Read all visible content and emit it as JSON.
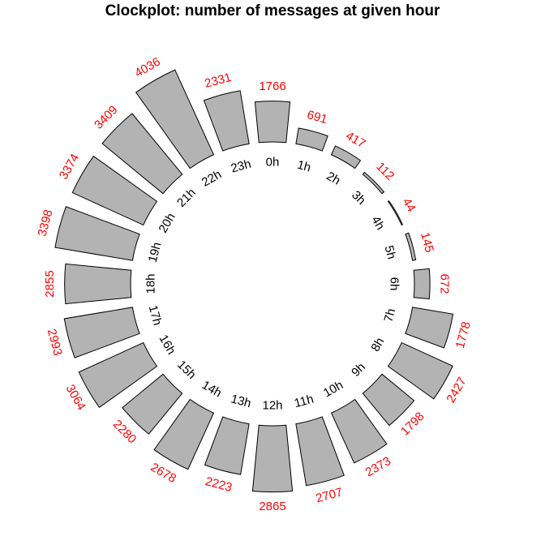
{
  "chart_data": {
    "type": "bar",
    "layout": "radial-clock",
    "title": "Clockplot: number of messages at given hour",
    "categories": [
      "0h",
      "1h",
      "2h",
      "3h",
      "4h",
      "5h",
      "6h",
      "7h",
      "8h",
      "9h",
      "10h",
      "11h",
      "12h",
      "13h",
      "14h",
      "15h",
      "16h",
      "17h",
      "18h",
      "19h",
      "20h",
      "21h",
      "22h",
      "23h"
    ],
    "values": [
      1766,
      691,
      417,
      112,
      44,
      145,
      672,
      1778,
      2427,
      1798,
      2373,
      2707,
      2865,
      2223,
      2678,
      2280,
      3064,
      2993,
      2855,
      3398,
      3374,
      3409,
      4036,
      2331
    ],
    "grid": false,
    "bar_color": "#b3b3b3",
    "value_label_color": "#ff0000"
  }
}
